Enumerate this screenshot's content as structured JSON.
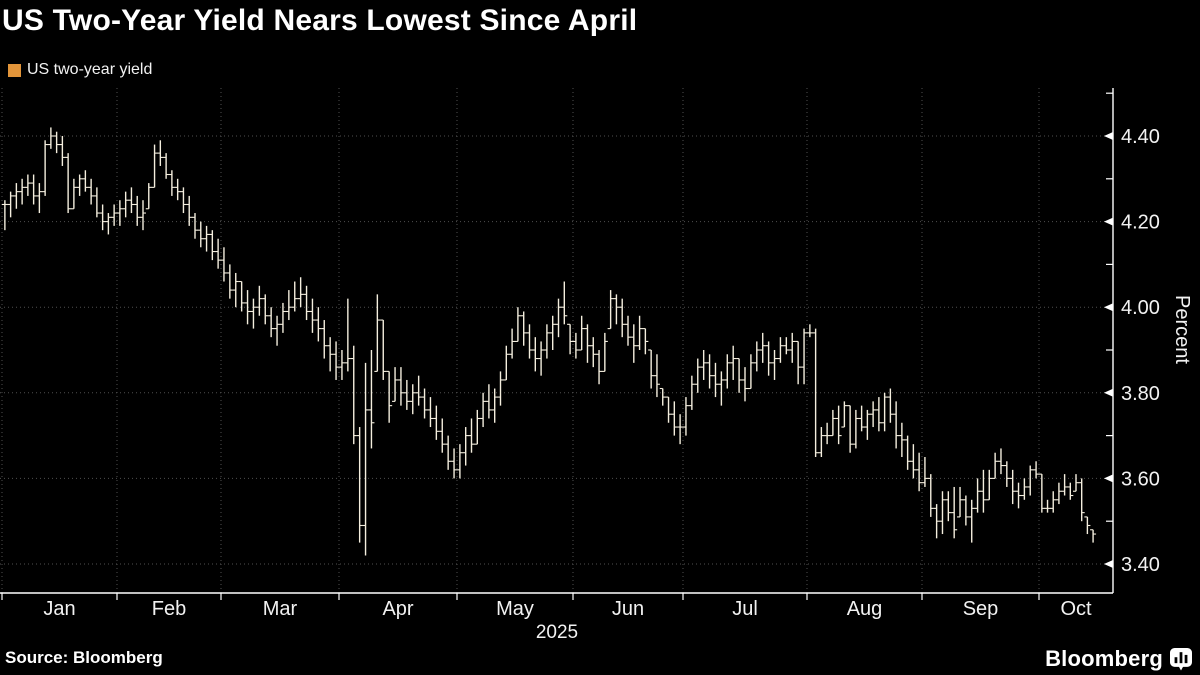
{
  "title": "US Two-Year Yield Nears Lowest Since April",
  "legend": {
    "label": "US two-year yield",
    "swatch_color": "#e2953a"
  },
  "source_label": "Source: Bloomberg",
  "brand_label": "Bloomberg",
  "colors": {
    "background": "#000000",
    "bar": "#f4eede",
    "grid": "#4f4f4f",
    "axis": "#ffffff",
    "text": "#f2f2f2",
    "legend_swatch": "#e2953a"
  },
  "chart_data": {
    "type": "bar",
    "subtype": "ohlc-daily-bars",
    "title": "US Two-Year Yield Nears Lowest Since April",
    "series_name": "US two-year yield",
    "ylabel": "Percent",
    "year_label": "2025",
    "ylim": [
      3.33,
      4.51
    ],
    "y_major_ticks": [
      4.4,
      4.2,
      4.0,
      3.8,
      3.6,
      3.4
    ],
    "y_minor_ticks": [
      4.5,
      4.3,
      4.1,
      3.9,
      3.7,
      3.5
    ],
    "grid": "dotted",
    "legend_position": "top-left",
    "months": [
      {
        "label": "Jan",
        "slots": 20,
        "bars": [
          [
            4.25,
            4.18,
            4.24
          ],
          [
            4.27,
            4.21,
            4.26
          ],
          [
            4.29,
            4.23,
            4.27
          ],
          [
            4.3,
            4.24,
            4.28
          ],
          [
            4.31,
            4.26,
            4.29
          ],
          [
            4.31,
            4.24,
            4.26
          ],
          [
            4.29,
            4.22,
            4.27
          ],
          [
            4.39,
            4.26,
            4.38
          ],
          [
            4.42,
            4.37,
            4.4
          ],
          [
            4.41,
            4.36,
            4.38
          ],
          [
            4.4,
            4.33,
            4.35
          ],
          [
            4.36,
            4.22,
            4.23
          ],
          [
            4.3,
            4.23,
            4.28
          ],
          [
            4.31,
            4.26,
            4.3
          ],
          [
            4.32,
            4.27,
            4.28
          ],
          [
            4.3,
            4.24,
            4.26
          ],
          [
            4.28,
            4.21,
            4.22
          ],
          [
            4.24,
            4.18,
            4.2
          ],
          [
            4.22,
            4.17,
            4.21
          ],
          [
            4.24,
            4.19,
            4.22
          ]
        ]
      },
      {
        "label": "Feb",
        "slots": 18,
        "bars": [
          [
            4.25,
            4.19,
            4.23
          ],
          [
            4.27,
            4.21,
            4.25
          ],
          [
            4.28,
            4.22,
            4.24
          ],
          [
            4.26,
            4.19,
            4.21
          ],
          [
            4.25,
            4.18,
            4.22
          ],
          [
            4.29,
            4.23,
            4.28
          ],
          [
            4.38,
            4.28,
            4.36
          ],
          [
            4.39,
            4.33,
            4.35
          ],
          [
            4.36,
            4.3,
            4.31
          ],
          [
            4.32,
            4.26,
            4.28
          ],
          [
            4.3,
            4.25,
            4.27
          ],
          [
            4.28,
            4.22,
            4.24
          ],
          [
            4.26,
            4.19,
            4.21
          ],
          [
            4.22,
            4.16,
            4.18
          ],
          [
            4.2,
            4.14,
            4.16
          ],
          [
            4.19,
            4.13,
            4.17
          ],
          [
            4.18,
            4.11,
            4.13
          ],
          [
            4.16,
            4.09,
            4.11
          ]
        ]
      },
      {
        "label": "Mar",
        "slots": 20,
        "bars": [
          [
            4.14,
            4.06,
            4.08
          ],
          [
            4.1,
            4.02,
            4.04
          ],
          [
            4.08,
            4.0,
            4.06
          ],
          [
            4.06,
            3.99,
            4.01
          ],
          [
            4.04,
            3.96,
            3.99
          ],
          [
            4.02,
            3.95,
            4.0
          ],
          [
            4.05,
            3.98,
            4.02
          ],
          [
            4.03,
            3.96,
            3.98
          ],
          [
            4.0,
            3.93,
            3.95
          ],
          [
            3.98,
            3.91,
            3.96
          ],
          [
            4.01,
            3.94,
            3.99
          ],
          [
            4.04,
            3.97,
            4.0
          ],
          [
            4.06,
            3.99,
            4.02
          ],
          [
            4.07,
            4.0,
            4.03
          ],
          [
            4.05,
            3.97,
            3.99
          ],
          [
            4.02,
            3.94,
            3.97
          ],
          [
            4.0,
            3.92,
            3.95
          ],
          [
            3.97,
            3.88,
            3.91
          ],
          [
            3.93,
            3.85,
            3.89
          ],
          [
            3.92,
            3.83,
            3.86
          ]
        ]
      },
      {
        "label": "Apr",
        "slots": 20,
        "bars": [
          [
            3.9,
            3.83,
            3.87
          ],
          [
            4.02,
            3.85,
            3.88
          ],
          [
            3.91,
            3.68,
            3.7
          ],
          [
            3.72,
            3.45,
            3.49
          ],
          [
            3.87,
            3.42,
            3.76
          ],
          [
            3.9,
            3.67,
            3.73
          ],
          [
            4.03,
            3.85,
            3.97
          ],
          [
            3.97,
            3.83,
            3.85
          ],
          [
            3.85,
            3.73,
            3.77
          ],
          [
            3.86,
            3.78,
            3.83
          ],
          [
            3.86,
            3.77,
            3.8
          ],
          [
            3.83,
            3.76,
            3.78
          ],
          [
            3.82,
            3.75,
            3.8
          ],
          [
            3.84,
            3.77,
            3.79
          ],
          [
            3.81,
            3.74,
            3.76
          ],
          [
            3.79,
            3.72,
            3.74
          ],
          [
            3.77,
            3.69,
            3.71
          ],
          [
            3.74,
            3.66,
            3.68
          ],
          [
            3.7,
            3.62,
            3.64
          ],
          [
            3.67,
            3.6,
            3.62
          ]
        ]
      },
      {
        "label": "May",
        "slots": 20,
        "bars": [
          [
            3.68,
            3.6,
            3.66
          ],
          [
            3.72,
            3.63,
            3.7
          ],
          [
            3.74,
            3.66,
            3.68
          ],
          [
            3.76,
            3.68,
            3.74
          ],
          [
            3.8,
            3.72,
            3.78
          ],
          [
            3.82,
            3.74,
            3.76
          ],
          [
            3.81,
            3.73,
            3.79
          ],
          [
            3.85,
            3.77,
            3.83
          ],
          [
            3.91,
            3.83,
            3.89
          ],
          [
            3.95,
            3.88,
            3.92
          ],
          [
            4.0,
            3.92,
            3.98
          ],
          [
            3.99,
            3.91,
            3.94
          ],
          [
            3.96,
            3.88,
            3.9
          ],
          [
            3.93,
            3.85,
            3.88
          ],
          [
            3.92,
            3.84,
            3.9
          ],
          [
            3.96,
            3.88,
            3.94
          ],
          [
            3.98,
            3.9,
            3.96
          ],
          [
            4.02,
            3.93,
            4.0
          ],
          [
            4.06,
            3.96,
            3.98
          ],
          [
            3.96,
            3.89,
            3.92
          ]
        ]
      },
      {
        "label": "Jun",
        "slots": 19,
        "bars": [
          [
            3.94,
            3.88,
            3.9
          ],
          [
            3.98,
            3.9,
            3.95
          ],
          [
            3.96,
            3.87,
            3.91
          ],
          [
            3.93,
            3.86,
            3.89
          ],
          [
            3.9,
            3.82,
            3.85
          ],
          [
            3.94,
            3.85,
            3.92
          ],
          [
            4.04,
            3.95,
            4.02
          ],
          [
            4.03,
            3.96,
            4.0
          ],
          [
            4.02,
            3.93,
            3.96
          ],
          [
            3.98,
            3.91,
            3.93
          ],
          [
            3.96,
            3.87,
            3.91
          ],
          [
            3.98,
            3.9,
            3.95
          ],
          [
            3.95,
            3.89,
            3.92
          ],
          [
            3.9,
            3.81,
            3.84
          ],
          [
            3.89,
            3.79,
            3.82
          ],
          [
            3.81,
            3.77,
            3.79
          ],
          [
            3.79,
            3.73,
            3.75
          ],
          [
            3.78,
            3.7,
            3.72
          ],
          [
            3.75,
            3.68,
            3.72
          ]
        ]
      },
      {
        "label": "Jul",
        "slots": 21,
        "bars": [
          [
            3.79,
            3.7,
            3.77
          ],
          [
            3.84,
            3.76,
            3.82
          ],
          [
            3.88,
            3.8,
            3.86
          ],
          [
            3.9,
            3.83,
            3.87
          ],
          [
            3.89,
            3.81,
            3.84
          ],
          [
            3.87,
            3.79,
            3.82
          ],
          [
            3.85,
            3.77,
            3.83
          ],
          [
            3.89,
            3.81,
            3.87
          ],
          [
            3.91,
            3.83,
            3.88
          ],
          [
            3.88,
            3.8,
            3.83
          ],
          [
            3.86,
            3.78,
            3.81
          ],
          [
            3.89,
            3.81,
            3.87
          ],
          [
            3.92,
            3.85,
            3.9
          ],
          [
            3.94,
            3.87,
            3.91
          ],
          [
            3.92,
            3.84,
            3.87
          ],
          [
            3.9,
            3.83,
            3.88
          ],
          [
            3.93,
            3.87,
            3.91
          ],
          [
            3.93,
            3.89,
            3.9
          ],
          [
            3.94,
            3.87,
            3.92
          ],
          [
            3.92,
            3.82,
            3.86
          ],
          [
            3.95,
            3.82,
            3.94
          ]
        ]
      },
      {
        "label": "Aug",
        "slots": 20,
        "bars": [
          [
            3.96,
            3.93,
            3.94
          ],
          [
            3.95,
            3.65,
            3.66
          ],
          [
            3.72,
            3.65,
            3.7
          ],
          [
            3.73,
            3.68,
            3.7
          ],
          [
            3.76,
            3.7,
            3.74
          ],
          [
            3.77,
            3.68,
            3.7
          ],
          [
            3.78,
            3.72,
            3.77
          ],
          [
            3.77,
            3.66,
            3.68
          ],
          [
            3.76,
            3.67,
            3.74
          ],
          [
            3.77,
            3.71,
            3.72
          ],
          [
            3.76,
            3.69,
            3.75
          ],
          [
            3.78,
            3.72,
            3.76
          ],
          [
            3.79,
            3.71,
            3.73
          ],
          [
            3.8,
            3.71,
            3.79
          ],
          [
            3.81,
            3.73,
            3.75
          ],
          [
            3.78,
            3.67,
            3.7
          ],
          [
            3.73,
            3.65,
            3.69
          ],
          [
            3.7,
            3.62,
            3.64
          ],
          [
            3.68,
            3.6,
            3.62
          ],
          [
            3.66,
            3.57,
            3.59
          ]
        ]
      },
      {
        "label": "Sep",
        "slots": 20,
        "bars": [
          [
            3.65,
            3.58,
            3.6
          ],
          [
            3.61,
            3.51,
            3.53
          ],
          [
            3.54,
            3.46,
            3.5
          ],
          [
            3.57,
            3.47,
            3.55
          ],
          [
            3.57,
            3.5,
            3.52
          ],
          [
            3.58,
            3.46,
            3.48
          ],
          [
            3.58,
            3.51,
            3.55
          ],
          [
            3.56,
            3.49,
            3.51
          ],
          [
            3.55,
            3.45,
            3.53
          ],
          [
            3.6,
            3.52,
            3.57
          ],
          [
            3.62,
            3.52,
            3.55
          ],
          [
            3.62,
            3.55,
            3.6
          ],
          [
            3.66,
            3.6,
            3.64
          ],
          [
            3.67,
            3.61,
            3.63
          ],
          [
            3.64,
            3.58,
            3.6
          ],
          [
            3.62,
            3.54,
            3.57
          ],
          [
            3.59,
            3.53,
            3.56
          ],
          [
            3.6,
            3.55,
            3.58
          ],
          [
            3.63,
            3.56,
            3.62
          ],
          [
            3.64,
            3.6,
            3.61
          ]
        ]
      },
      {
        "label": "Oct",
        "slots": 13,
        "bars": [
          [
            3.61,
            3.52,
            3.53
          ],
          [
            3.55,
            3.52,
            3.53
          ],
          [
            3.57,
            3.52,
            3.55
          ],
          [
            3.59,
            3.54,
            3.57
          ],
          [
            3.61,
            3.56,
            3.58
          ],
          [
            3.59,
            3.55,
            3.56
          ],
          [
            3.61,
            3.57,
            3.59
          ],
          [
            3.6,
            3.5,
            3.52
          ],
          [
            3.51,
            3.47,
            3.49
          ],
          [
            3.48,
            3.45,
            3.47
          ]
        ]
      }
    ]
  }
}
